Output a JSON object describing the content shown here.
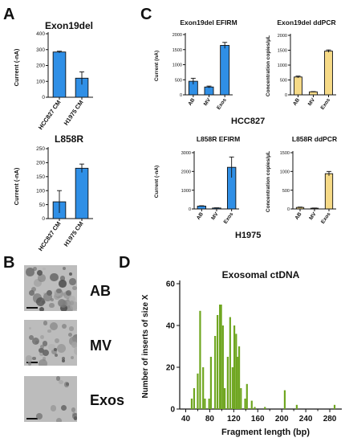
{
  "panel_letters": {
    "a": "A",
    "b": "B",
    "c": "C",
    "d": "D"
  },
  "micrograph_labels": [
    "AB",
    "MV",
    "Exos"
  ],
  "section_labels": {
    "c_row1": "HCC827",
    "c_row2": "H1975"
  },
  "colors": {
    "blue": "#2f8fe6",
    "yellow": "#f6da87",
    "green": "#6fa620"
  },
  "chart_data": [
    {
      "id": "a1",
      "type": "bar",
      "title": "Exon19del",
      "ylabel": "Current (-nA)",
      "xlabel": "",
      "categories": [
        "HCC827 CM",
        "H1975 CM"
      ],
      "values": [
        285,
        120
      ],
      "errors": [
        5,
        40
      ],
      "ylim": [
        0,
        400
      ],
      "yticks": [
        0,
        100,
        200,
        300,
        400
      ],
      "color": "blue"
    },
    {
      "id": "a2",
      "type": "bar",
      "title": "L858R",
      "ylabel": "Current (-nA)",
      "xlabel": "",
      "categories": [
        "HCC827 CM",
        "H1975 CM"
      ],
      "values": [
        60,
        180
      ],
      "errors": [
        40,
        15
      ],
      "ylim": [
        0,
        250
      ],
      "yticks": [
        0,
        50,
        100,
        150,
        200,
        250
      ],
      "color": "blue"
    },
    {
      "id": "c1",
      "type": "bar",
      "title": "Exon19del EFIRM",
      "ylabel": "Current (nA)",
      "xlabel": "",
      "categories": [
        "AB",
        "MV",
        "Exos"
      ],
      "values": [
        450,
        260,
        1640
      ],
      "errors": [
        100,
        30,
        100
      ],
      "ylim": [
        0,
        2000
      ],
      "yticks": [
        0,
        500,
        1000,
        1500,
        2000
      ],
      "color": "blue"
    },
    {
      "id": "c2",
      "type": "bar",
      "title": "Exon19del ddPCR",
      "ylabel": "Concentration  copies/μL",
      "xlabel": "",
      "categories": [
        "AB",
        "MV",
        "Exos"
      ],
      "values": [
        600,
        100,
        1470
      ],
      "errors": [
        30,
        10,
        40
      ],
      "ylim": [
        0,
        2000
      ],
      "yticks": [
        0,
        500,
        1000,
        1500,
        2000
      ],
      "color": "yellow"
    },
    {
      "id": "c3",
      "type": "bar",
      "title": "L858R  EFIRM",
      "ylabel": "Current (-nA)",
      "xlabel": "",
      "categories": [
        "AB",
        "MV",
        "Exos"
      ],
      "values": [
        150,
        50,
        2220
      ],
      "errors": [
        20,
        10,
        550
      ],
      "ylim": [
        0,
        3000
      ],
      "yticks": [
        0,
        1000,
        2000,
        3000
      ],
      "color": "blue"
    },
    {
      "id": "c4",
      "type": "bar",
      "title": "L858R  ddPCR",
      "ylabel": "Concentration  copies/μL",
      "xlabel": "",
      "categories": [
        "AB",
        "MV",
        "Exos"
      ],
      "values": [
        40,
        20,
        940
      ],
      "errors": [
        10,
        5,
        60
      ],
      "ylim": [
        0,
        1500
      ],
      "yticks": [
        0,
        500,
        1000,
        1500
      ],
      "color": "yellow"
    },
    {
      "id": "d",
      "type": "bar",
      "title": "Exosomal ctDNA",
      "xlabel": "Fragment length (bp)",
      "ylabel": "Number of inserts of  size X",
      "xlim": [
        30,
        300
      ],
      "ylim": [
        0,
        60
      ],
      "xticks": [
        40,
        60,
        80,
        100,
        120,
        140,
        160,
        180,
        200,
        220,
        240,
        260,
        280
      ],
      "yticks": [
        0,
        20,
        40,
        60
      ],
      "x": [
        50,
        54,
        60,
        64,
        69,
        72,
        79,
        82,
        89,
        93,
        97,
        99,
        102,
        105,
        110,
        114,
        118,
        121,
        124,
        126,
        129,
        132,
        139,
        142,
        150,
        155,
        172,
        205,
        225,
        288
      ],
      "y": [
        5,
        10,
        17,
        47,
        20,
        5,
        5,
        25,
        35,
        45,
        50,
        50,
        40,
        10,
        25,
        44,
        20,
        40,
        36,
        25,
        30,
        10,
        5,
        12,
        4,
        1,
        1,
        9,
        2,
        2
      ],
      "color": "green"
    }
  ]
}
